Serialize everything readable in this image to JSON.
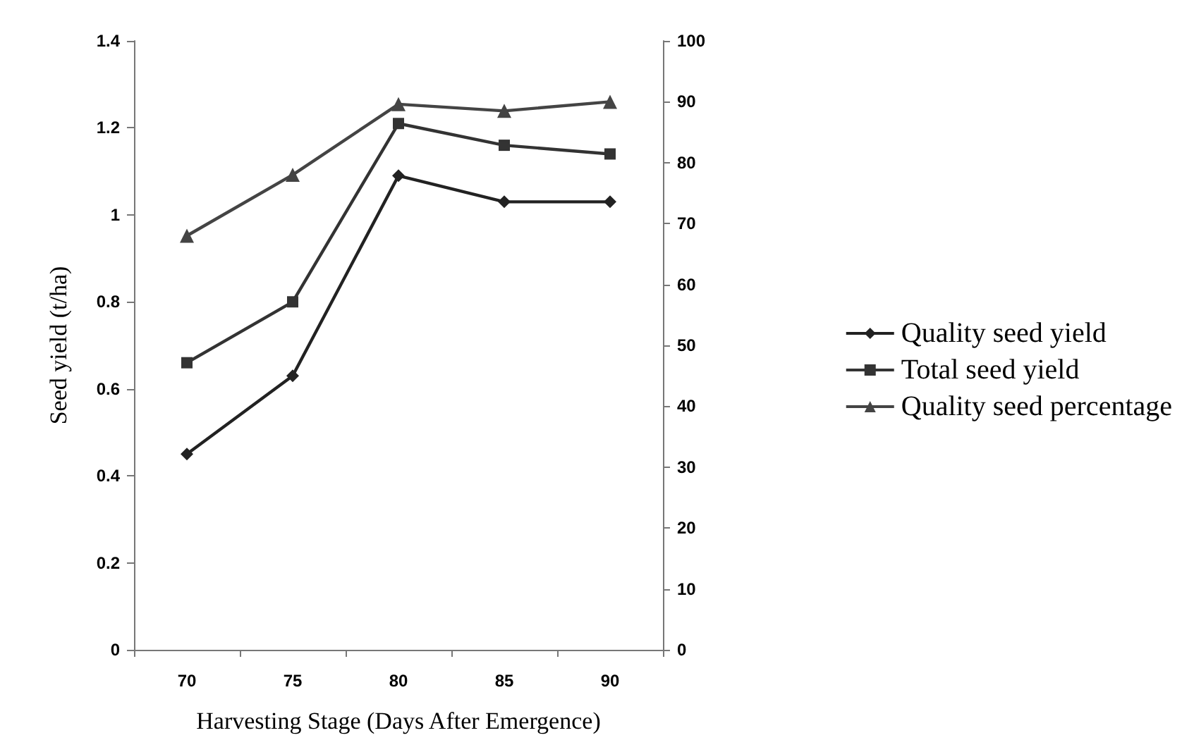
{
  "chart_data": {
    "type": "line",
    "xlabel": "Harvesting Stage (Days After Emergence)",
    "ylabel": "Seed yield (t/ha)",
    "categories": [
      "70",
      "75",
      "80",
      "85",
      "90"
    ],
    "series": [
      {
        "name": "Quality seed yield",
        "color": "#222222",
        "marker": "diamond",
        "values": [
          0.45,
          0.63,
          1.09,
          1.03,
          1.03
        ]
      },
      {
        "name": "Total seed yield",
        "color": "#333333",
        "marker": "square",
        "values": [
          0.66,
          0.8,
          1.21,
          1.16,
          1.14
        ]
      },
      {
        "name": "Quality seed percentage",
        "color": "#444444",
        "marker": "triangle",
        "axis": "y2",
        "values": [
          68,
          78,
          89.6,
          88.5,
          90
        ]
      }
    ],
    "ylim": [
      0,
      1.4
    ],
    "yticks": [
      0,
      0.2,
      0.4,
      0.6,
      0.8,
      1,
      1.2,
      1.4
    ],
    "y2lim": [
      0,
      100
    ],
    "y2ticks": [
      0,
      10,
      20,
      30,
      40,
      50,
      60,
      70,
      80,
      90,
      100
    ],
    "grid": false,
    "legend": "right"
  }
}
